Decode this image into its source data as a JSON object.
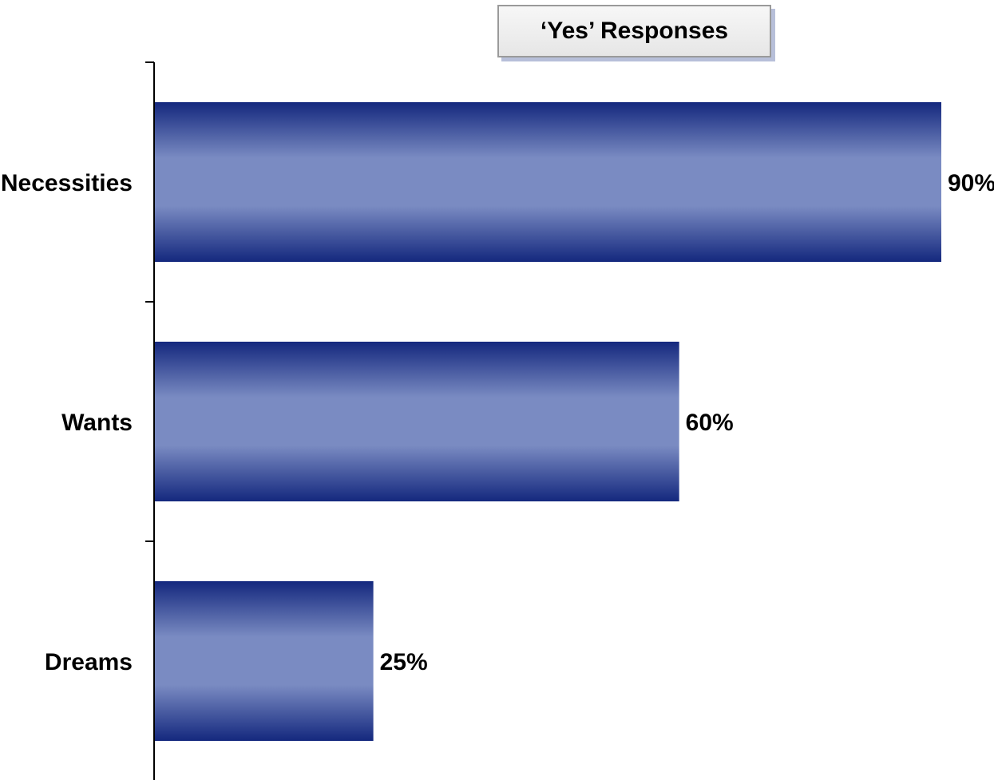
{
  "chart_data": {
    "type": "bar",
    "orientation": "horizontal",
    "categories": [
      "Necessities",
      "Wants",
      "Dreams"
    ],
    "series": [
      {
        "name": "‘Yes’ Responses",
        "values": [
          90,
          60,
          25
        ]
      }
    ],
    "value_labels": [
      "90%",
      "60%",
      "25%"
    ],
    "xlim": [
      0,
      90
    ],
    "grid": false,
    "legend_position": "top",
    "bar_color_dark": "#14287e",
    "bar_color_light": "#7a8bc2"
  }
}
